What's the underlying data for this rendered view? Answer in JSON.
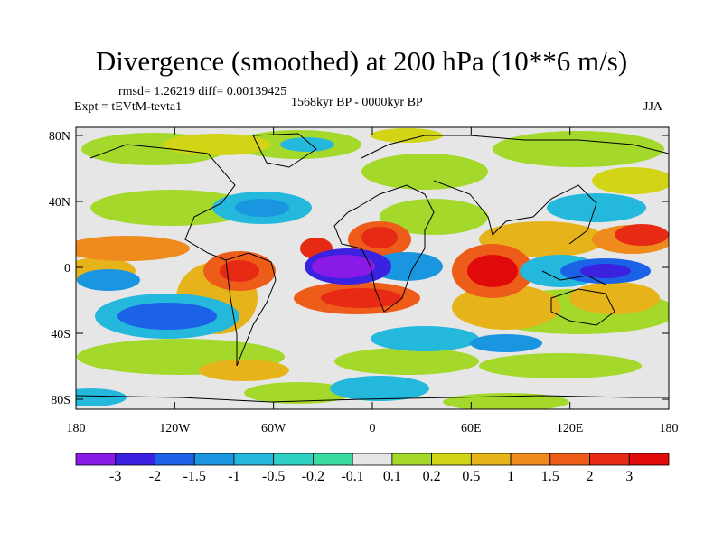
{
  "title": "Divergence (smoothed) at 200 hPa (10**6 m/s)",
  "stats": "rmsd= 1.26219 diff= 0.00139425",
  "experiment": "Expt = tEVtM-tevta1",
  "period": "1568kyr BP - 0000kyr BP",
  "season": "JJA",
  "y_ticks": [
    "80N",
    "40N",
    "0",
    "40S",
    "80S"
  ],
  "x_ticks": [
    "180",
    "120W",
    "60W",
    "0",
    "60E",
    "120E",
    "180"
  ],
  "colorbar": {
    "labels": [
      "-3",
      "-2",
      "-1.5",
      "-1",
      "-0.5",
      "-0.2",
      "-0.1",
      "0.1",
      "0.2",
      "0.5",
      "1",
      "1.5",
      "2",
      "3"
    ],
    "colors": [
      "#8a1ae6",
      "#3b22e0",
      "#1c62e6",
      "#1a95e0",
      "#23b8dc",
      "#2ed0c4",
      "#38dca0",
      "#e6e6e6",
      "#a4d82a",
      "#d2d416",
      "#e6b41a",
      "#ef8a1c",
      "#ee5c1a",
      "#e62a14",
      "#e00a0a"
    ]
  }
}
